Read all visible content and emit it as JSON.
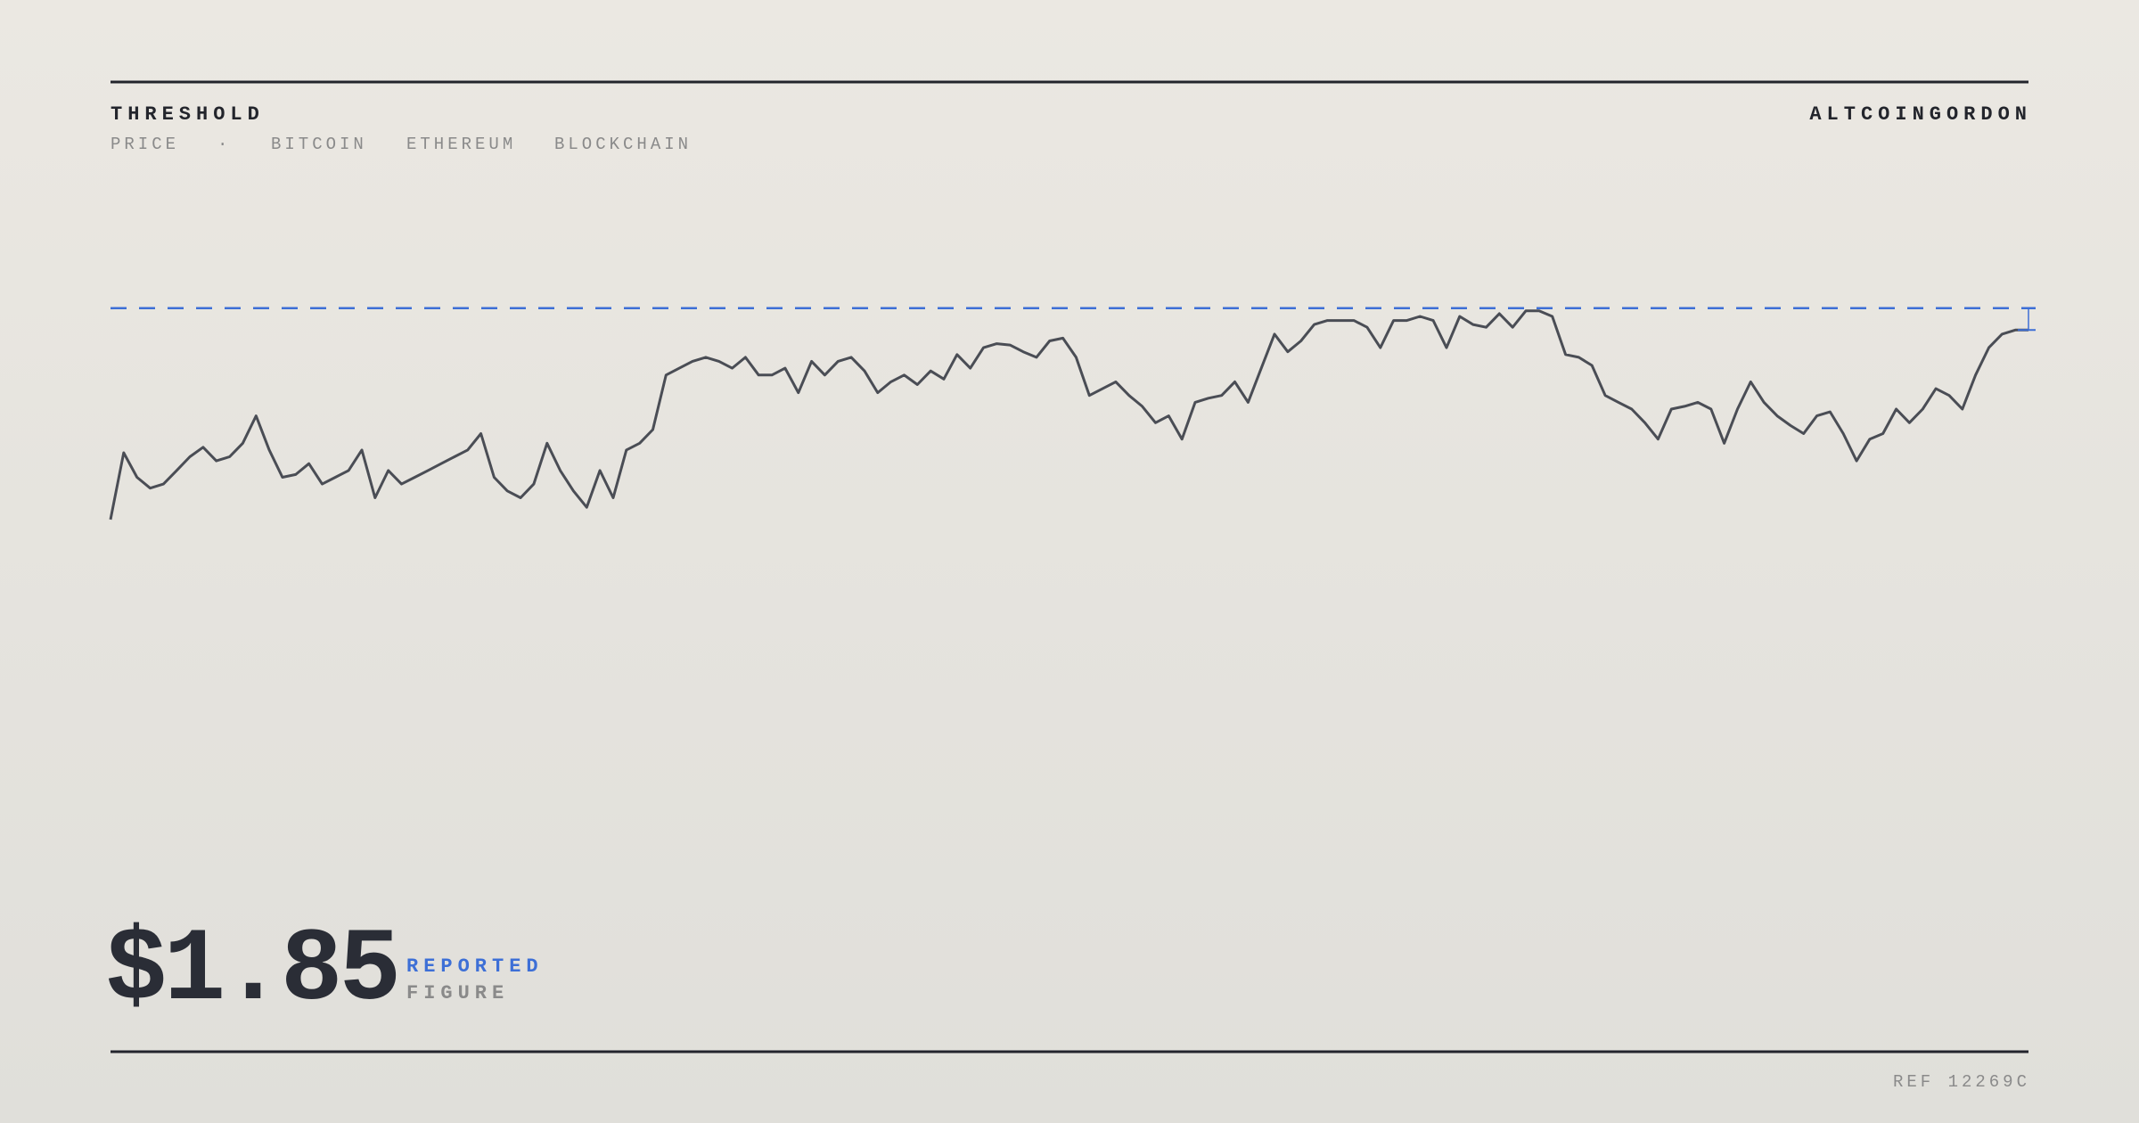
{
  "header": {
    "title": "THRESHOLD",
    "nav": [
      "PRICE",
      "·",
      "BITCOIN",
      "ETHEREUM",
      "BLOCKCHAIN"
    ],
    "brand": "ALTCOINGORDON"
  },
  "chart_data": {
    "type": "line",
    "color": "#4a4d55",
    "threshold": 87,
    "threshold_color": "#3d6fd6",
    "ylim": [
      0,
      100
    ],
    "values": [
      9.5,
      34,
      25,
      21,
      22.5,
      27.5,
      32.5,
      36,
      31,
      32.5,
      37.5,
      47.5,
      35,
      25,
      26,
      30,
      22.5,
      25,
      27.5,
      35,
      17.5,
      27.5,
      22.5,
      25,
      27.5,
      30,
      32.5,
      35,
      41,
      25,
      20,
      17.5,
      22.5,
      37.5,
      27.5,
      20,
      14,
      27.5,
      17.5,
      35,
      37.5,
      42.5,
      62.5,
      65,
      67.5,
      69,
      67.5,
      65,
      69,
      62.5,
      62.5,
      65,
      56,
      67.5,
      62.5,
      67.5,
      69,
      64,
      56,
      60,
      62.5,
      59,
      64,
      61,
      70,
      65,
      72.5,
      74,
      73.5,
      71,
      69,
      75,
      76,
      69,
      55,
      57.5,
      60,
      55,
      51,
      45,
      47.5,
      39,
      52.5,
      54,
      55,
      60,
      52.5,
      65,
      77.5,
      71,
      75,
      81,
      82.5,
      82.5,
      82.5,
      80,
      72.5,
      82.5,
      82.5,
      84,
      82.5,
      72.5,
      84,
      81,
      80,
      85,
      80,
      86,
      86,
      84,
      70,
      69,
      66,
      55,
      52.5,
      50,
      45,
      39,
      50,
      51,
      52.5,
      50,
      37.5,
      50,
      60,
      52.5,
      47.5,
      44,
      41,
      47.5,
      49,
      41,
      31,
      39,
      41,
      50,
      45,
      50,
      57.5,
      55,
      50,
      62.5,
      72.5,
      77.5,
      79,
      79
    ]
  },
  "figure": {
    "value": "$1.85",
    "label": "REPORTED",
    "sublabel": "FIGURE"
  },
  "footer": {
    "ref": "REF 12269C"
  }
}
